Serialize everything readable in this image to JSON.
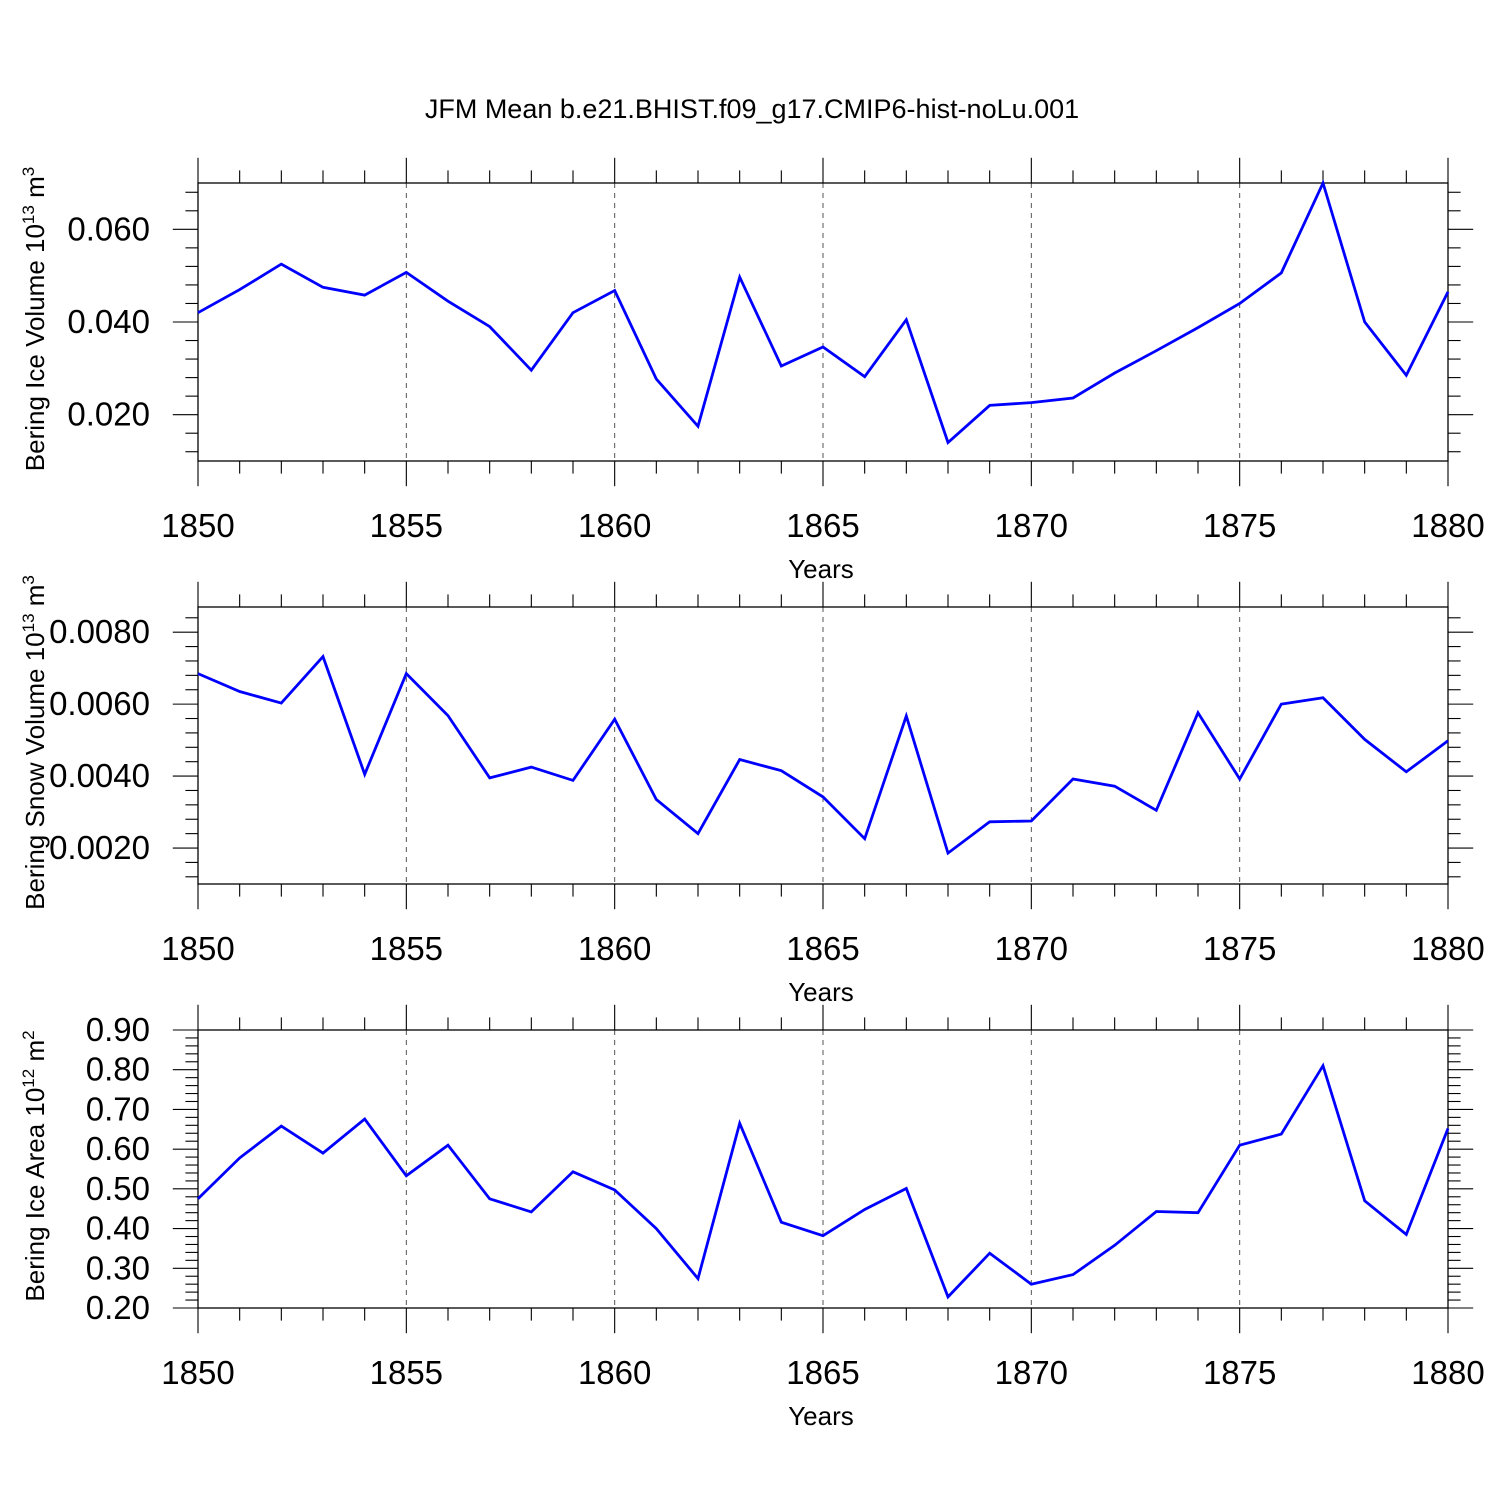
{
  "title": "JFM Mean b.e21.BHIST.f09_g17.CMIP6-hist-noLu.001",
  "colors": {
    "line": "#0000ff",
    "axis": "#000000",
    "grid": "#555555"
  },
  "chart_data": [
    {
      "type": "line",
      "ylabel": {
        "prefix": "Bering Ice Volume 10",
        "exp": "13",
        "unit": " m",
        "unit_exp": "3"
      },
      "xlabel": "Years",
      "xlim": [
        1850,
        1880
      ],
      "ylim": [
        0.01,
        0.07
      ],
      "yticks": [
        0.02,
        0.04,
        0.06
      ],
      "ytick_labels": [
        "0.020",
        "0.040",
        "0.060"
      ],
      "xticks": [
        1850,
        1855,
        1860,
        1865,
        1870,
        1875,
        1880
      ],
      "xtick_labels": [
        "1850",
        "1855",
        "1860",
        "1865",
        "1870",
        "1875",
        "1880"
      ],
      "grid": "vertical dashed",
      "x": [
        1850,
        1851,
        1852,
        1853,
        1854,
        1855,
        1856,
        1857,
        1858,
        1859,
        1860,
        1861,
        1862,
        1863,
        1864,
        1865,
        1866,
        1867,
        1868,
        1869,
        1870,
        1871,
        1872,
        1873,
        1874,
        1875,
        1876,
        1877,
        1878,
        1879,
        1880
      ],
      "values": [
        0.042,
        0.047,
        0.0525,
        0.0475,
        0.0458,
        0.0507,
        0.0445,
        0.039,
        0.0296,
        0.042,
        0.0468,
        0.0277,
        0.0175,
        0.0497,
        0.0305,
        0.0346,
        0.0282,
        0.0405,
        0.014,
        0.022,
        0.0226,
        0.0236,
        0.029,
        0.0338,
        0.0388,
        0.044,
        0.0506,
        0.07,
        0.04,
        0.0285,
        0.0465
      ]
    },
    {
      "type": "line",
      "ylabel": {
        "prefix": "Bering Snow Volume 10",
        "exp": "13",
        "unit": " m",
        "unit_exp": "3"
      },
      "xlabel": "Years",
      "xlim": [
        1850,
        1880
      ],
      "ylim": [
        0.001,
        0.0087
      ],
      "yticks": [
        0.002,
        0.004,
        0.006,
        0.008
      ],
      "ytick_labels": [
        "0.0020",
        "0.0040",
        "0.0060",
        "0.0080"
      ],
      "xticks": [
        1850,
        1855,
        1860,
        1865,
        1870,
        1875,
        1880
      ],
      "xtick_labels": [
        "1850",
        "1855",
        "1860",
        "1865",
        "1870",
        "1875",
        "1880"
      ],
      "grid": "vertical dashed",
      "x": [
        1850,
        1851,
        1852,
        1853,
        1854,
        1855,
        1856,
        1857,
        1858,
        1859,
        1860,
        1861,
        1862,
        1863,
        1864,
        1865,
        1866,
        1867,
        1868,
        1869,
        1870,
        1871,
        1872,
        1873,
        1874,
        1875,
        1876,
        1877,
        1878,
        1879,
        1880
      ],
      "values": [
        0.00685,
        0.00635,
        0.00603,
        0.00732,
        0.00405,
        0.00685,
        0.00568,
        0.00395,
        0.00425,
        0.00388,
        0.00558,
        0.00335,
        0.0024,
        0.00446,
        0.00415,
        0.00342,
        0.00226,
        0.00567,
        0.00186,
        0.00273,
        0.00275,
        0.00392,
        0.00372,
        0.00305,
        0.00576,
        0.00392,
        0.006,
        0.00618,
        0.00502,
        0.00412,
        0.00498
      ]
    },
    {
      "type": "line",
      "ylabel": {
        "prefix": "Bering Ice Area 10",
        "exp": "12",
        "unit": " m",
        "unit_exp": "2"
      },
      "xlabel": "Years",
      "xlim": [
        1850,
        1880
      ],
      "ylim": [
        0.2,
        0.9
      ],
      "yticks": [
        0.2,
        0.3,
        0.4,
        0.5,
        0.6,
        0.7,
        0.8,
        0.9
      ],
      "ytick_labels": [
        "0.20",
        "0.30",
        "0.40",
        "0.50",
        "0.60",
        "0.70",
        "0.80",
        "0.90"
      ],
      "xticks": [
        1850,
        1855,
        1860,
        1865,
        1870,
        1875,
        1880
      ],
      "xtick_labels": [
        "1850",
        "1855",
        "1860",
        "1865",
        "1870",
        "1875",
        "1880"
      ],
      "grid": "vertical dashed",
      "x": [
        1850,
        1851,
        1852,
        1853,
        1854,
        1855,
        1856,
        1857,
        1858,
        1859,
        1860,
        1861,
        1862,
        1863,
        1864,
        1865,
        1866,
        1867,
        1868,
        1869,
        1870,
        1871,
        1872,
        1873,
        1874,
        1875,
        1876,
        1877,
        1878,
        1879,
        1880
      ],
      "values": [
        0.475,
        0.578,
        0.658,
        0.59,
        0.676,
        0.533,
        0.61,
        0.475,
        0.442,
        0.543,
        0.497,
        0.4,
        0.274,
        0.665,
        0.416,
        0.382,
        0.448,
        0.501,
        0.228,
        0.338,
        0.26,
        0.284,
        0.358,
        0.443,
        0.44,
        0.61,
        0.638,
        0.81,
        0.47,
        0.385,
        0.652
      ]
    }
  ]
}
